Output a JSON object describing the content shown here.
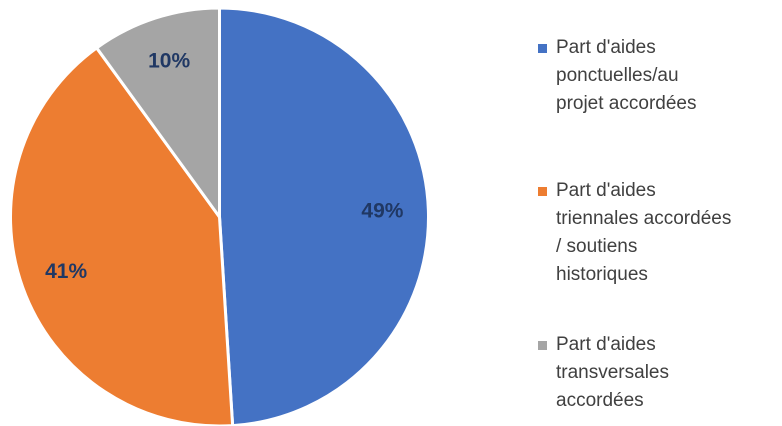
{
  "chart_data": {
    "type": "pie",
    "categories": [
      "Part d'aides\nponctuelles/au\nprojet accordées",
      "Part d'aides\ntriennales accordées\n/ soutiens\nhistoriques",
      "Part d'aides\ntransversales\naccordées"
    ],
    "values": [
      49,
      41,
      10
    ],
    "value_labels": [
      "49%",
      "41%",
      "10%"
    ],
    "colors": [
      "#4472c4",
      "#ed7d31",
      "#a5a5a5"
    ],
    "legend": "right"
  }
}
